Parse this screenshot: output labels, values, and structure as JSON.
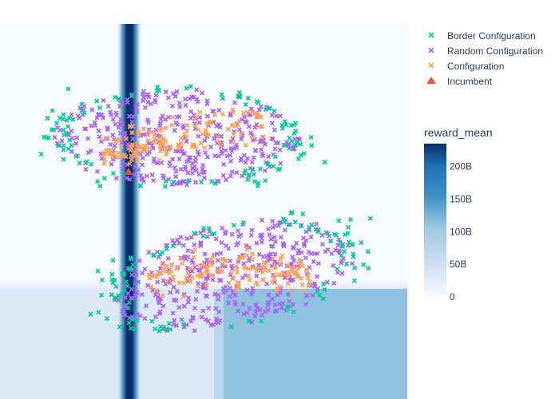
{
  "chart_data": {
    "type": "scatter",
    "title": "",
    "xlabel": "",
    "ylabel": "",
    "background": {
      "type": "heatmap",
      "description": "surrogate model prediction of reward_mean",
      "colorscale": [
        "#f7fbff",
        "#deebf7",
        "#c6dbef",
        "#9ecae1",
        "#6baed6",
        "#4292c6",
        "#2171b5",
        "#08519c",
        "#08306b"
      ]
    },
    "colorbar": {
      "title": "reward_mean",
      "range": [
        0,
        235
      ],
      "ticks": [
        {
          "value": 0,
          "label": "0"
        },
        {
          "value": 50,
          "label": "50B"
        },
        {
          "value": 100,
          "label": "100B"
        },
        {
          "value": 150,
          "label": "150B"
        },
        {
          "value": 200,
          "label": "200B"
        }
      ]
    },
    "legend_position": "top-right",
    "series": [
      {
        "name": "Border Configuration",
        "marker": "x",
        "color": "#00cc96",
        "approx_count": 220
      },
      {
        "name": "Random Configuration",
        "marker": "x",
        "color": "#ab63fa",
        "approx_count": 750
      },
      {
        "name": "Configuration",
        "marker": "x",
        "color": "#ffa15a",
        "approx_count": 280
      },
      {
        "name": "Incumbent",
        "marker": "triangle-up",
        "color": "#ef553b",
        "approx_count": 1
      }
    ]
  }
}
